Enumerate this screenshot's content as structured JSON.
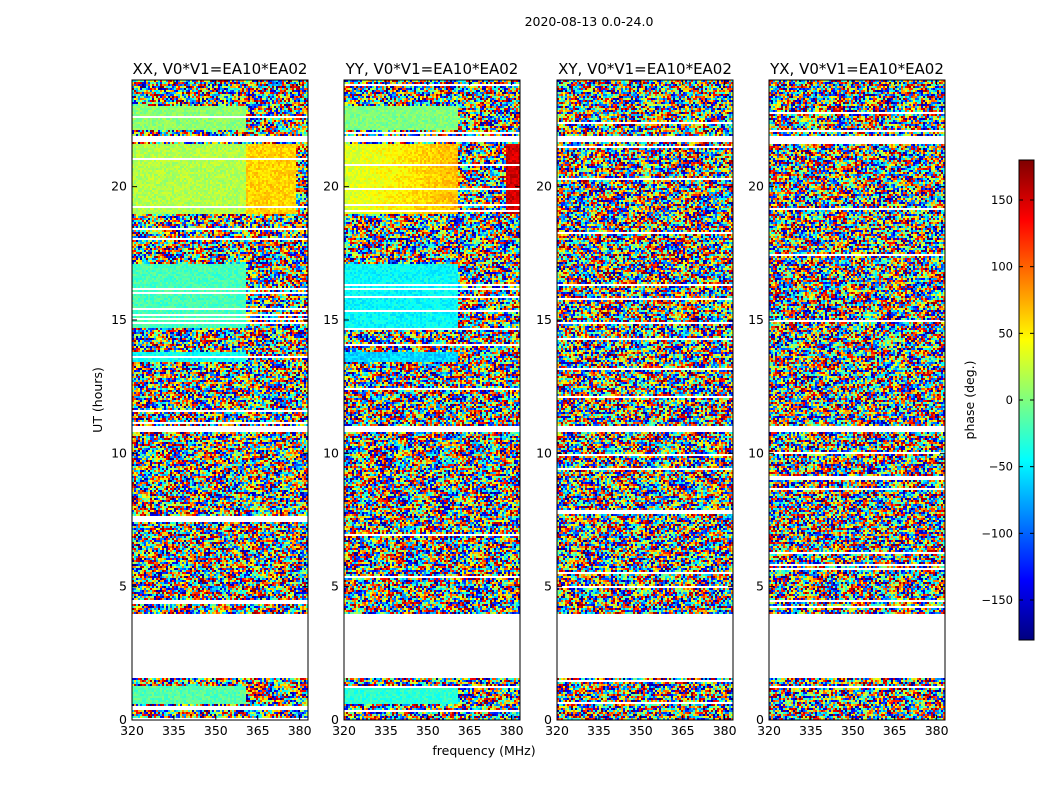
{
  "suptitle": "2020-08-13 0.0-24.0",
  "colors": {
    "jet_stops": [
      "#00007f",
      "#0000ff",
      "#007fff",
      "#00ffff",
      "#7fff7f",
      "#ffff00",
      "#ff7f00",
      "#ff0000",
      "#7f0000"
    ]
  },
  "chart_data": {
    "type": "heatmap",
    "xlabel": "frequency (MHz)",
    "ylabel": "UT (hours)",
    "xlim": [
      320,
      383
    ],
    "ylim": [
      0,
      24
    ],
    "x_ticks": [
      320,
      335,
      350,
      365,
      380
    ],
    "y_ticks": [
      0,
      5,
      10,
      15,
      20
    ],
    "colorbar": {
      "label": "phase (deg.)",
      "range": [
        -180,
        180
      ],
      "ticks": [
        150,
        100,
        50,
        0,
        -50,
        -100,
        -150
      ],
      "tick_labels": [
        "150",
        "100",
        "50",
        "0",
        "−50",
        "−100",
        "−150"
      ],
      "colormap": "jet"
    },
    "panels": [
      {
        "title": "XX, V0*V1=EA10*EA02",
        "coherent_segments": [
          {
            "x_range": [
              320,
              361
            ],
            "t_range": [
              19.0,
              21.6
            ],
            "phase": 18
          },
          {
            "x_range": [
              361,
              379
            ],
            "t_range": [
              19.0,
              21.6
            ],
            "phase": 60
          },
          {
            "x_range": [
              320,
              361
            ],
            "t_range": [
              22.1,
              23.0
            ],
            "phase": 5
          },
          {
            "x_range": [
              320,
              361
            ],
            "t_range": [
              14.7,
              17.1
            ],
            "phase": -20
          },
          {
            "x_range": [
              320,
              361
            ],
            "t_range": [
              13.4,
              13.8
            ],
            "phase": -40
          },
          {
            "x_range": [
              320,
              361
            ],
            "t_range": [
              0.6,
              1.3
            ],
            "phase": -15
          }
        ]
      },
      {
        "title": "YY, V0*V1=EA10*EA02",
        "coherent_segments": [
          {
            "x_range": [
              320,
              361
            ],
            "t_range": [
              19.0,
              21.6
            ],
            "phase": 30,
            "gradient_to": 70
          },
          {
            "x_range": [
              378,
              383
            ],
            "t_range": [
              19.0,
              21.6
            ],
            "phase": 150
          },
          {
            "x_range": [
              320,
              361
            ],
            "t_range": [
              22.1,
              23.0
            ],
            "phase": 0
          },
          {
            "x_range": [
              320,
              361
            ],
            "t_range": [
              14.7,
              17.1
            ],
            "phase": -45
          },
          {
            "x_range": [
              320,
              361
            ],
            "t_range": [
              13.4,
              13.8
            ],
            "phase": -60
          },
          {
            "x_range": [
              320,
              361
            ],
            "t_range": [
              0.6,
              1.3
            ],
            "phase": -30
          }
        ]
      },
      {
        "title": "XY, V0*V1=EA10*EA02",
        "coherent_segments": []
      },
      {
        "title": "YX, V0*V1=EA10*EA02",
        "coherent_segments": []
      }
    ],
    "flagged_gaps": [
      {
        "t_range": [
          1.6,
          3.95
        ]
      },
      {
        "t_range": [
          21.7,
          21.9
        ]
      },
      {
        "t_range": [
          10.8,
          11.0
        ]
      }
    ]
  }
}
